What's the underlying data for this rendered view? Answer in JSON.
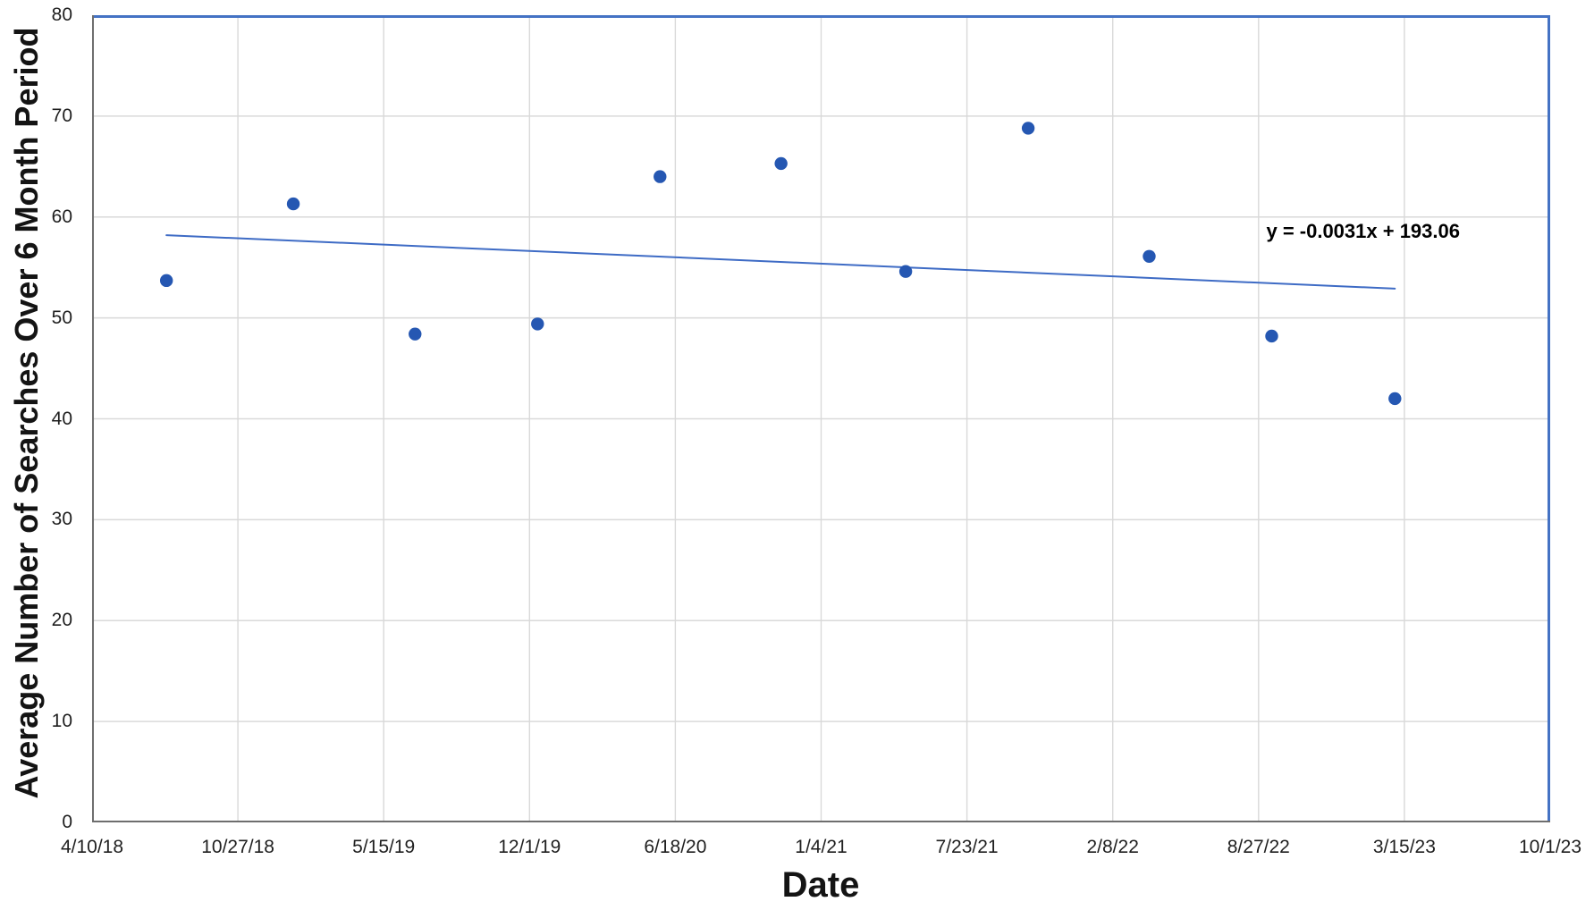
{
  "chart_data": {
    "type": "scatter",
    "title": "",
    "xlabel": "Date",
    "ylabel": "Average Number of Searches Over 6 Month Period",
    "ylim": [
      0,
      80
    ],
    "y_ticks": [
      0,
      10,
      20,
      30,
      40,
      50,
      60,
      70,
      80
    ],
    "x_axis_total_days": 2000,
    "x_ticks": [
      {
        "label": "4/10/18",
        "days": 0
      },
      {
        "label": "10/27/18",
        "days": 200
      },
      {
        "label": "5/15/19",
        "days": 400
      },
      {
        "label": "12/1/19",
        "days": 600
      },
      {
        "label": "6/18/20",
        "days": 800
      },
      {
        "label": "1/4/21",
        "days": 1000
      },
      {
        "label": "7/23/21",
        "days": 1200
      },
      {
        "label": "2/8/22",
        "days": 1400
      },
      {
        "label": "8/27/22",
        "days": 1600
      },
      {
        "label": "3/15/23",
        "days": 1800
      },
      {
        "label": "10/1/23",
        "days": 2000
      }
    ],
    "grid": true,
    "legend_position": "none",
    "points": [
      {
        "days": 102,
        "y": 53.7
      },
      {
        "days": 276,
        "y": 61.3
      },
      {
        "days": 443,
        "y": 48.4
      },
      {
        "days": 611,
        "y": 49.4
      },
      {
        "days": 779,
        "y": 64.0
      },
      {
        "days": 945,
        "y": 65.3
      },
      {
        "days": 1116,
        "y": 54.6
      },
      {
        "days": 1284,
        "y": 68.8
      },
      {
        "days": 1450,
        "y": 56.1
      },
      {
        "days": 1618,
        "y": 48.2
      },
      {
        "days": 1787,
        "y": 42.0
      }
    ],
    "trendline": {
      "label": "y = -0.0031x + 193.06",
      "x1_days": 102,
      "y1": 58.2,
      "x2_days": 1787,
      "y2": 52.9
    },
    "colors": {
      "point": "#2557b2",
      "trend": "#3464c2",
      "border": "#4472c4",
      "axis": "#6e6e6e",
      "grid": "#d9d9d9",
      "tick_text": "#1f1f1f",
      "title_text": "#141414",
      "equation_text": "#000000"
    }
  }
}
